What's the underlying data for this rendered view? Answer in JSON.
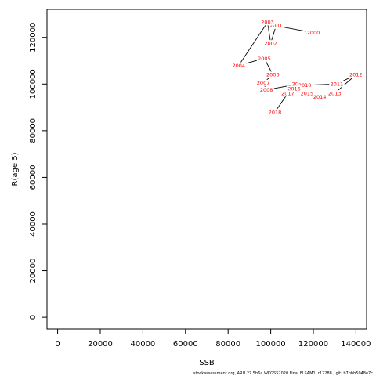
{
  "chart_data": {
    "type": "line",
    "title": "",
    "xlabel": "SSB",
    "ylabel": "R(age 5)",
    "xlim": [
      -5000,
      145000
    ],
    "ylim": [
      -5000,
      132000
    ],
    "xticks": [
      0,
      20000,
      40000,
      60000,
      80000,
      100000,
      120000,
      140000
    ],
    "yticks": [
      0,
      20000,
      40000,
      60000,
      80000,
      100000,
      120000
    ],
    "grid": false,
    "line_color": "#000000",
    "label_color": "#ff0000",
    "series": [
      {
        "points": [
          {
            "label": "2000",
            "x": 120000,
            "y": 122000
          },
          {
            "label": "2001",
            "x": 102500,
            "y": 125000
          },
          {
            "label": "2002",
            "x": 100000,
            "y": 117500
          },
          {
            "label": "2003",
            "x": 98500,
            "y": 126500
          },
          {
            "label": "2004",
            "x": 85000,
            "y": 108000
          },
          {
            "label": "2005",
            "x": 97000,
            "y": 111000
          },
          {
            "label": "2006",
            "x": 101000,
            "y": 104000
          },
          {
            "label": "2007",
            "x": 96500,
            "y": 100500
          },
          {
            "label": "2008",
            "x": 98000,
            "y": 97500
          },
          {
            "label": "2009",
            "x": 113000,
            "y": 100000
          },
          {
            "label": "2010",
            "x": 116000,
            "y": 99500
          },
          {
            "label": "2011",
            "x": 131000,
            "y": 100000
          },
          {
            "label": "2012",
            "x": 140000,
            "y": 104000
          },
          {
            "label": "2013",
            "x": 130000,
            "y": 96000
          },
          {
            "label": "2014",
            "x": 123000,
            "y": 94500
          },
          {
            "label": "2015",
            "x": 117000,
            "y": 96000
          },
          {
            "label": "2016",
            "x": 111000,
            "y": 98000
          },
          {
            "label": "2017",
            "x": 108000,
            "y": 96000
          },
          {
            "label": "2018",
            "x": 102000,
            "y": 88000
          }
        ]
      }
    ]
  },
  "footnote": "stockassessment.org,  ARU.27.5b6a  WKGSS2020  Final  FLSAM1,  r12288 ,  git:  b7bbb5048e7c"
}
